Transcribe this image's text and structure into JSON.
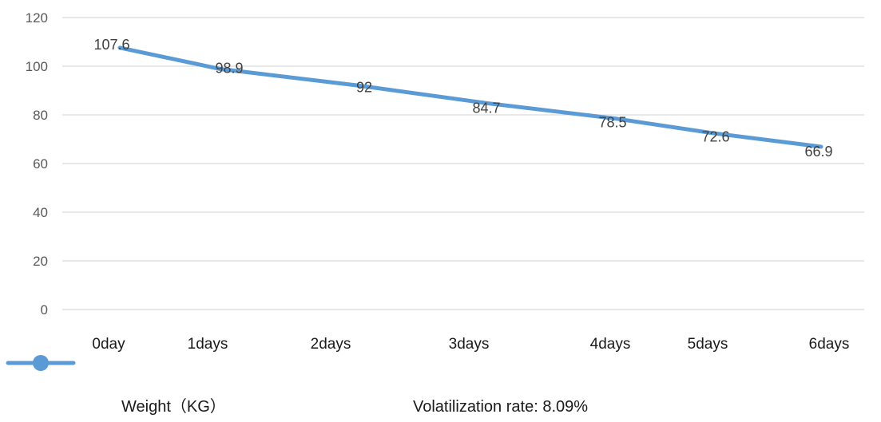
{
  "chart_data": {
    "type": "line",
    "categories": [
      "0day",
      "1days",
      "2days",
      "3days",
      "4days",
      "5days",
      "6days"
    ],
    "series": [
      {
        "name": "Weight（KG）",
        "values": [
          107.6,
          98.9,
          92,
          84.7,
          78.5,
          72.6,
          66.9
        ],
        "color": "#5b9bd5"
      }
    ],
    "data_labels": [
      "107.6",
      "98.9",
      "92",
      "84.7",
      "78.5",
      "72.6",
      "66.9"
    ],
    "yticks": [
      0,
      20,
      40,
      60,
      80,
      100,
      120
    ],
    "ylim": [
      0,
      120
    ],
    "grid": true,
    "legend_position": "bottom-left",
    "annotation": "Volatilization rate: 8.09%",
    "colors": {
      "line": "#5b9bd5",
      "grid": "#d9d9d9",
      "tick_text": "#595959"
    }
  }
}
